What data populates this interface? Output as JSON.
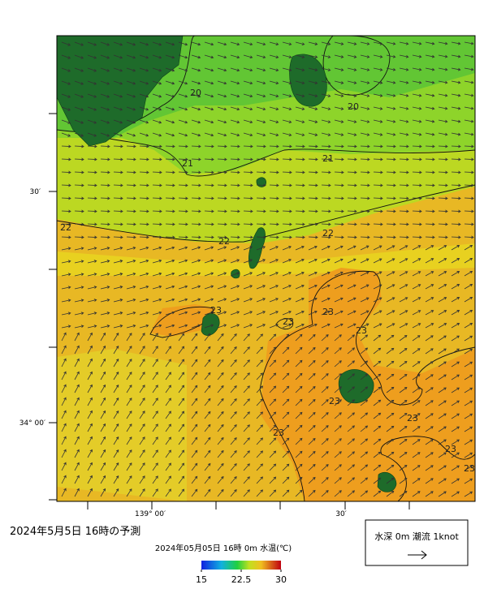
{
  "title": "2024年5月5日 16時の予測",
  "subtitle": "2024年05月05日 16時 0m 水温(℃)",
  "legend": "水深 0m 潮流 1knot",
  "colorbar": {
    "lim": [
      15,
      30
    ],
    "ticks": [
      15,
      22.5,
      30
    ]
  },
  "lat_labels": [
    "30′",
    "34° 00′"
  ],
  "lon_labels": [
    "139° 00′",
    "30′"
  ],
  "contour_labels": [
    20,
    20,
    21,
    21,
    22,
    22,
    22,
    23,
    23,
    23,
    23,
    23,
    23,
    23,
    23,
    23
  ]
}
